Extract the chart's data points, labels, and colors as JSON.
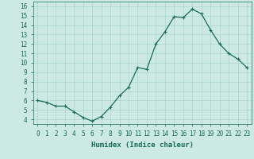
{
  "x": [
    0,
    1,
    2,
    3,
    4,
    5,
    6,
    7,
    8,
    9,
    10,
    11,
    12,
    13,
    14,
    15,
    16,
    17,
    18,
    19,
    20,
    21,
    22,
    23
  ],
  "y": [
    6.0,
    5.8,
    5.4,
    5.4,
    4.8,
    4.2,
    3.8,
    4.3,
    5.3,
    6.5,
    7.4,
    9.5,
    9.3,
    12.0,
    13.3,
    14.9,
    14.8,
    15.7,
    15.2,
    13.5,
    12.0,
    11.0,
    10.4,
    9.5
  ],
  "line_color": "#1a6b5a",
  "marker": "+",
  "marker_size": 3,
  "marker_lw": 0.8,
  "bg_color": "#cce9e4",
  "grid_color": "#aad4ce",
  "xlabel": "Humidex (Indice chaleur)",
  "xlim": [
    -0.5,
    23.5
  ],
  "ylim": [
    3.5,
    16.5
  ],
  "xticks": [
    0,
    1,
    2,
    3,
    4,
    5,
    6,
    7,
    8,
    9,
    10,
    11,
    12,
    13,
    14,
    15,
    16,
    17,
    18,
    19,
    20,
    21,
    22,
    23
  ],
  "yticks": [
    4,
    5,
    6,
    7,
    8,
    9,
    10,
    11,
    12,
    13,
    14,
    15,
    16
  ],
  "tick_color": "#1a6b5a",
  "label_color": "#1a6b5a",
  "font_family": "monospace",
  "tick_fontsize": 5.5,
  "xlabel_fontsize": 6.5,
  "line_width": 0.9
}
